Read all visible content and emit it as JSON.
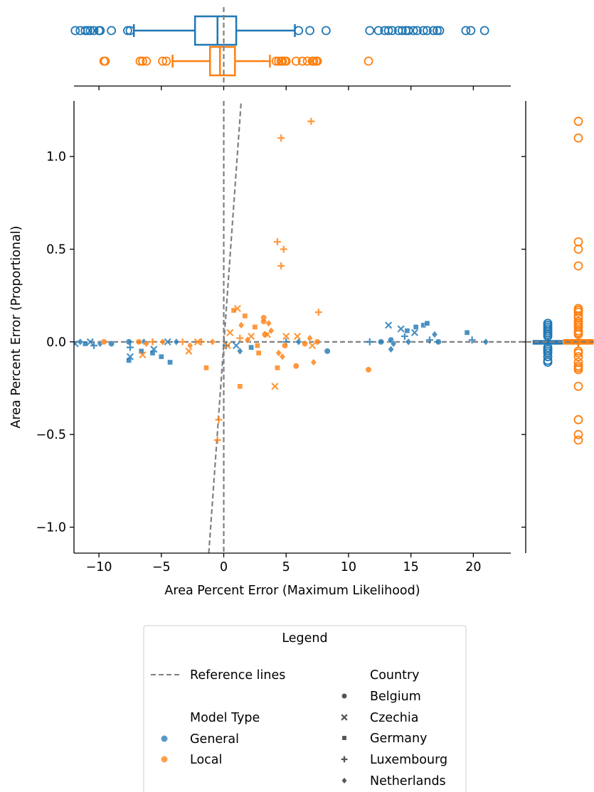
{
  "chart_data": {
    "type": "scatter",
    "xlabel": "Area Percent Error (Maximum Likelihood)",
    "ylabel": "Area Percent Error (Proportional)",
    "xlim": [
      -12,
      23
    ],
    "ylim": [
      -1.14,
      1.3
    ],
    "x_ticks": [
      -10,
      -5,
      0,
      5,
      10,
      15,
      20
    ],
    "x_tick_labels": [
      "−10",
      "−5",
      "0",
      "5",
      "10",
      "15",
      "20"
    ],
    "y_ticks": [
      -1.0,
      -0.5,
      0.0,
      0.5,
      1.0
    ],
    "y_tick_labels": [
      "−1.0",
      "−0.5",
      "0.0",
      "0.5",
      "1.0"
    ],
    "grid": false,
    "legend_placement": "bottom-center",
    "colors": {
      "General": "#1f77b4",
      "Local": "#ff7f0e",
      "reference": "#808080",
      "country_marker": "#555555"
    },
    "reference_lines": [
      {
        "kind": "horizontal",
        "y": 0
      },
      {
        "kind": "vertical",
        "x": 0
      },
      {
        "kind": "line",
        "points": [
          [
            -1.2,
            -1.14
          ],
          [
            1.4,
            1.3
          ]
        ]
      }
    ],
    "series": [
      {
        "name": "General",
        "points": [
          {
            "x": -11.9,
            "y": -0.01,
            "c": "Czechia"
          },
          {
            "x": -11.5,
            "y": 0.0,
            "c": "Netherlands"
          },
          {
            "x": -11.1,
            "y": -0.01,
            "c": "Germany"
          },
          {
            "x": -10.7,
            "y": 0.0,
            "c": "Czechia"
          },
          {
            "x": -10.4,
            "y": -0.02,
            "c": "Luxembourg"
          },
          {
            "x": -9.9,
            "y": -0.01,
            "c": "Netherlands"
          },
          {
            "x": -9.0,
            "y": -0.01,
            "c": "Belgium"
          },
          {
            "x": -7.6,
            "y": 0.0,
            "c": "Belgium"
          },
          {
            "x": -7.6,
            "y": -0.1,
            "c": "Germany"
          },
          {
            "x": -7.5,
            "y": -0.08,
            "c": "Czechia"
          },
          {
            "x": -7.5,
            "y": -0.03,
            "c": "Luxembourg"
          },
          {
            "x": -6.6,
            "y": -0.05,
            "c": "Germany"
          },
          {
            "x": -6.4,
            "y": 0.0,
            "c": "Netherlands"
          },
          {
            "x": -5.7,
            "y": -0.06,
            "c": "Germany"
          },
          {
            "x": -5.6,
            "y": -0.04,
            "c": "Czechia"
          },
          {
            "x": -5.0,
            "y": -0.08,
            "c": "Germany"
          },
          {
            "x": -4.5,
            "y": 0.0,
            "c": "Czechia"
          },
          {
            "x": -4.3,
            "y": -0.11,
            "c": "Germany"
          },
          {
            "x": -3.8,
            "y": 0.0,
            "c": "Netherlands"
          },
          {
            "x": 0.2,
            "y": -0.02,
            "c": "Luxembourg"
          },
          {
            "x": 1.0,
            "y": -0.02,
            "c": "Czechia"
          },
          {
            "x": 1.3,
            "y": -0.05,
            "c": "Netherlands"
          },
          {
            "x": 2.2,
            "y": -0.03,
            "c": "Germany"
          },
          {
            "x": 5.0,
            "y": 0.0,
            "c": "Luxembourg"
          },
          {
            "x": 6.0,
            "y": 0.0,
            "c": "Netherlands"
          },
          {
            "x": 8.3,
            "y": -0.05,
            "c": "Belgium"
          },
          {
            "x": 11.7,
            "y": 0.0,
            "c": "Luxembourg"
          },
          {
            "x": 12.6,
            "y": 0.0,
            "c": "Belgium"
          },
          {
            "x": 13.2,
            "y": 0.09,
            "c": "Czechia"
          },
          {
            "x": 13.4,
            "y": 0.01,
            "c": "Belgium"
          },
          {
            "x": 13.4,
            "y": -0.04,
            "c": "Netherlands"
          },
          {
            "x": 13.6,
            "y": -0.01,
            "c": "Netherlands"
          },
          {
            "x": 14.2,
            "y": 0.07,
            "c": "Czechia"
          },
          {
            "x": 14.5,
            "y": 0.03,
            "c": "Luxembourg"
          },
          {
            "x": 14.7,
            "y": 0.06,
            "c": "Germany"
          },
          {
            "x": 14.8,
            "y": 0.0,
            "c": "Netherlands"
          },
          {
            "x": 15.3,
            "y": 0.05,
            "c": "Czechia"
          },
          {
            "x": 15.4,
            "y": 0.08,
            "c": "Germany"
          },
          {
            "x": 16.0,
            "y": 0.09,
            "c": "Germany"
          },
          {
            "x": 16.3,
            "y": 0.1,
            "c": "Germany"
          },
          {
            "x": 16.5,
            "y": 0.01,
            "c": "Luxembourg"
          },
          {
            "x": 16.9,
            "y": 0.04,
            "c": "Netherlands"
          },
          {
            "x": 17.2,
            "y": 0.0,
            "c": "Belgium"
          },
          {
            "x": 19.5,
            "y": 0.05,
            "c": "Germany"
          },
          {
            "x": 19.9,
            "y": 0.01,
            "c": "Luxembourg"
          },
          {
            "x": 21.0,
            "y": 0.0,
            "c": "Netherlands"
          }
        ]
      },
      {
        "name": "Local",
        "points": [
          {
            "x": -9.6,
            "y": 0.0,
            "c": "Belgium"
          },
          {
            "x": -6.8,
            "y": 0.0,
            "c": "Belgium"
          },
          {
            "x": -6.5,
            "y": -0.07,
            "c": "Czechia"
          },
          {
            "x": -6.2,
            "y": -0.01,
            "c": "Netherlands"
          },
          {
            "x": -5.7,
            "y": 0.0,
            "c": "Luxembourg"
          },
          {
            "x": -4.9,
            "y": 0.0,
            "c": "Netherlands"
          },
          {
            "x": -3.3,
            "y": 0.0,
            "c": "Luxembourg"
          },
          {
            "x": -2.8,
            "y": -0.05,
            "c": "Czechia"
          },
          {
            "x": -2.7,
            "y": -0.02,
            "c": "Netherlands"
          },
          {
            "x": -2.1,
            "y": 0.0,
            "c": "Czechia"
          },
          {
            "x": -1.8,
            "y": 0.0,
            "c": "Luxembourg"
          },
          {
            "x": -1.4,
            "y": -0.14,
            "c": "Germany"
          },
          {
            "x": -0.9,
            "y": 0.0,
            "c": "Netherlands"
          },
          {
            "x": -0.4,
            "y": -0.42,
            "c": "Luxembourg"
          },
          {
            "x": -0.5,
            "y": -0.53,
            "c": "Luxembourg"
          },
          {
            "x": 0.3,
            "y": -0.02,
            "c": "Czechia"
          },
          {
            "x": 0.5,
            "y": 0.05,
            "c": "Czechia"
          },
          {
            "x": 0.8,
            "y": 0.17,
            "c": "Germany"
          },
          {
            "x": 1.1,
            "y": 0.18,
            "c": "Czechia"
          },
          {
            "x": 1.3,
            "y": 0.02,
            "c": "Luxembourg"
          },
          {
            "x": 1.3,
            "y": -0.24,
            "c": "Germany"
          },
          {
            "x": 1.4,
            "y": 0.09,
            "c": "Netherlands"
          },
          {
            "x": 1.7,
            "y": 0.14,
            "c": "Germany"
          },
          {
            "x": 1.9,
            "y": 0.01,
            "c": "Netherlands"
          },
          {
            "x": 2.2,
            "y": 0.03,
            "c": "Czechia"
          },
          {
            "x": 2.5,
            "y": 0.08,
            "c": "Germany"
          },
          {
            "x": 2.7,
            "y": -0.02,
            "c": "Germany"
          },
          {
            "x": 2.8,
            "y": -0.06,
            "c": "Germany"
          },
          {
            "x": 3.2,
            "y": 0.13,
            "c": "Belgium"
          },
          {
            "x": 3.2,
            "y": 0.11,
            "c": "Belgium"
          },
          {
            "x": 3.3,
            "y": 0.04,
            "c": "Belgium"
          },
          {
            "x": 3.5,
            "y": 0.04,
            "c": "Czechia"
          },
          {
            "x": 3.6,
            "y": 0.1,
            "c": "Netherlands"
          },
          {
            "x": 3.8,
            "y": 0.06,
            "c": "Netherlands"
          },
          {
            "x": 4.1,
            "y": -0.24,
            "c": "Czechia"
          },
          {
            "x": 4.3,
            "y": -0.14,
            "c": "Germany"
          },
          {
            "x": 4.3,
            "y": 0.54,
            "c": "Luxembourg"
          },
          {
            "x": 4.4,
            "y": -0.06,
            "c": "Netherlands"
          },
          {
            "x": 4.6,
            "y": 1.1,
            "c": "Luxembourg"
          },
          {
            "x": 4.6,
            "y": 0.41,
            "c": "Luxembourg"
          },
          {
            "x": 4.7,
            "y": -0.08,
            "c": "Netherlands"
          },
          {
            "x": 4.8,
            "y": 0.5,
            "c": "Luxembourg"
          },
          {
            "x": 4.9,
            "y": -0.02,
            "c": "Belgium"
          },
          {
            "x": 5.0,
            "y": 0.03,
            "c": "Czechia"
          },
          {
            "x": 5.8,
            "y": -0.13,
            "c": "Belgium"
          },
          {
            "x": 5.9,
            "y": 0.03,
            "c": "Czechia"
          },
          {
            "x": 6.5,
            "y": -0.01,
            "c": "Belgium"
          },
          {
            "x": 6.9,
            "y": 0.02,
            "c": "Netherlands"
          },
          {
            "x": 7.0,
            "y": 1.19,
            "c": "Luxembourg"
          },
          {
            "x": 7.1,
            "y": -0.02,
            "c": "Czechia"
          },
          {
            "x": 7.2,
            "y": -0.11,
            "c": "Netherlands"
          },
          {
            "x": 7.5,
            "y": 0.0,
            "c": "Belgium"
          },
          {
            "x": 7.6,
            "y": 0.16,
            "c": "Luxembourg"
          },
          {
            "x": 11.6,
            "y": -0.15,
            "c": "Belgium"
          }
        ]
      }
    ],
    "marginal_boxplots": {
      "x": [
        {
          "name": "General",
          "q1": -2.3,
          "median": -0.5,
          "q3": 1.0,
          "whisker_low": -7.2,
          "whisker_high": 5.7,
          "fliers": [
            -11.9,
            -11.5,
            -11.1,
            -10.9,
            -10.7,
            -10.4,
            -10.0,
            -9.9,
            -9.0,
            -7.7,
            -7.5,
            6.0,
            6.9,
            8.2,
            11.7,
            12.4,
            12.9,
            13.2,
            13.5,
            14.0,
            14.3,
            14.6,
            14.8,
            15.2,
            15.5,
            16.0,
            16.3,
            16.8,
            17.1,
            17.3,
            19.4,
            19.8,
            20.9
          ]
        },
        {
          "name": "Local",
          "q1": -1.1,
          "median": -0.3,
          "q3": 0.9,
          "whisker_low": -4.1,
          "whisker_high": 3.7,
          "fliers": [
            -9.6,
            -9.5,
            -6.7,
            -6.5,
            -6.2,
            -4.9,
            -4.6,
            4.2,
            4.4,
            4.6,
            4.7,
            4.9,
            5.0,
            5.8,
            6.3,
            6.7,
            7.1,
            7.2,
            7.4,
            7.5,
            11.6
          ]
        }
      ],
      "y": [
        {
          "name": "General",
          "q1": -0.01,
          "median": 0.0,
          "q3": 0.005,
          "whisker_low": -0.02,
          "whisker_high": 0.02,
          "fliers": [
            -0.11,
            -0.1,
            -0.08,
            -0.06,
            -0.05,
            -0.04,
            -0.03,
            0.03,
            0.04,
            0.05,
            0.06,
            0.07,
            0.08,
            0.09,
            0.1
          ]
        },
        {
          "name": "Local",
          "q1": -0.01,
          "median": 0.0,
          "q3": 0.01,
          "whisker_low": -0.03,
          "whisker_high": 0.03,
          "fliers": [
            -0.53,
            -0.5,
            -0.42,
            -0.24,
            -0.15,
            -0.14,
            -0.13,
            -0.11,
            -0.08,
            -0.06,
            -0.05,
            0.04,
            0.05,
            0.06,
            0.08,
            0.09,
            0.1,
            0.11,
            0.13,
            0.14,
            0.16,
            0.17,
            0.18,
            0.41,
            0.5,
            0.54,
            1.1,
            1.19
          ]
        }
      ]
    }
  },
  "legend": {
    "title": "Legend",
    "reference_label": "Reference lines",
    "model_type_title": "Model Type",
    "model_types": [
      "General",
      "Local"
    ],
    "country_title": "Country",
    "countries": [
      "Belgium",
      "Czechia",
      "Germany",
      "Luxembourg",
      "Netherlands"
    ]
  }
}
